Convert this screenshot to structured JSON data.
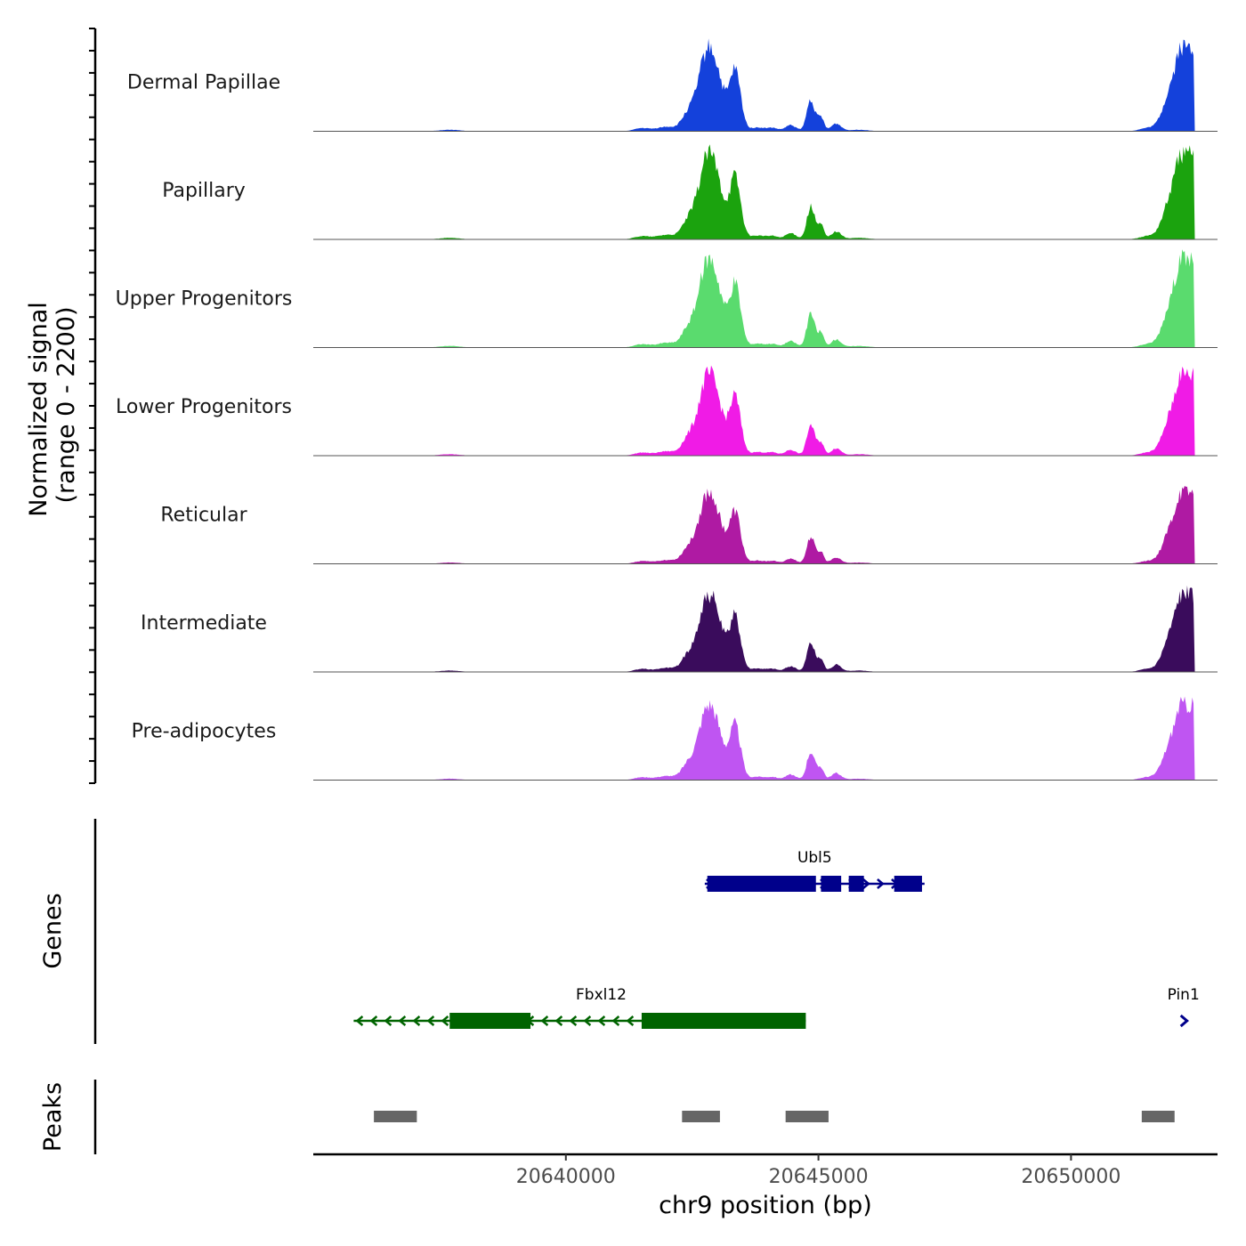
{
  "chart_data": {
    "type": "area",
    "title": "",
    "xlabel": "chr9 position (bp)",
    "ylabel": [
      "Normalized signal",
      "(range 0 - 2200)"
    ],
    "y_range": [
      0,
      2200
    ],
    "x_range": [
      20635000,
      20652900
    ],
    "x_ticks": [
      20640000,
      20645000,
      20650000
    ],
    "x_tick_labels": [
      "20640000",
      "20645000",
      "20650000"
    ],
    "genes_label": "Genes",
    "peaks_label": "Peaks",
    "peak_profile": [
      {
        "center": 20637700,
        "height": 0.02,
        "width": 200
      },
      {
        "center": 20641500,
        "height": 0.04,
        "width": 150
      },
      {
        "center": 20642000,
        "height": 0.06,
        "width": 200
      },
      {
        "center": 20642400,
        "height": 0.18,
        "width": 120
      },
      {
        "center": 20642750,
        "height": 0.8,
        "width": 170
      },
      {
        "center": 20642950,
        "height": 0.55,
        "width": 150
      },
      {
        "center": 20643350,
        "height": 0.8,
        "width": 110
      },
      {
        "center": 20643100,
        "height": 0.12,
        "width": 100
      },
      {
        "center": 20643800,
        "height": 0.05,
        "width": 150
      },
      {
        "center": 20644100,
        "height": 0.04,
        "width": 100
      },
      {
        "center": 20644450,
        "height": 0.08,
        "width": 110
      },
      {
        "center": 20644850,
        "height": 0.42,
        "width": 80
      },
      {
        "center": 20645050,
        "height": 0.18,
        "width": 60
      },
      {
        "center": 20645350,
        "height": 0.1,
        "width": 100
      },
      {
        "center": 20645800,
        "height": 0.02,
        "width": 200
      },
      {
        "center": 20651500,
        "height": 0.04,
        "width": 150
      },
      {
        "center": 20652000,
        "height": 0.55,
        "width": 170
      },
      {
        "center": 20652250,
        "height": 1.0,
        "width": 130
      },
      {
        "center": 20652400,
        "height": 0.7,
        "width": 90
      }
    ],
    "series": [
      {
        "name": "Dermal Papillae",
        "color": "#1441DB",
        "scale": 0.95
      },
      {
        "name": "Papillary",
        "color": "#1BA30E",
        "scale": 0.97
      },
      {
        "name": "Upper Progenitors",
        "color": "#5ADB6E",
        "scale": 1.0
      },
      {
        "name": "Lower Progenitors",
        "color": "#F01BE6",
        "scale": 0.92
      },
      {
        "name": "Reticular",
        "color": "#AF1AA3",
        "scale": 0.8
      },
      {
        "name": "Intermediate",
        "color": "#3A0C5C",
        "scale": 0.88
      },
      {
        "name": "Pre-adipocytes",
        "color": "#BF55F2",
        "scale": 0.85
      }
    ],
    "genes": [
      {
        "name": "Ubl5",
        "start": 20642750,
        "end": 20647100,
        "strand": "+",
        "color": "#00008B",
        "exons": [
          [
            20642800,
            20644950
          ],
          [
            20645050,
            20645450
          ],
          [
            20645600,
            20645900
          ],
          [
            20646500,
            20647050
          ]
        ],
        "row": 0
      },
      {
        "name": "Fbxl12",
        "start": 20635800,
        "end": 20644750,
        "strand": "-",
        "color": "#006400",
        "exons": [
          [
            20637700,
            20639300
          ],
          [
            20641500,
            20644750
          ]
        ],
        "row": 1
      },
      {
        "name": "Pin1",
        "start": 20652150,
        "end": 20652300,
        "strand": "+",
        "color": "#00008B",
        "exons": [],
        "row": 1
      }
    ],
    "peaks": [
      [
        20636200,
        20637050
      ],
      [
        20642300,
        20643050
      ],
      [
        20644350,
        20645200
      ],
      [
        20651400,
        20652050
      ]
    ],
    "peak_color": "#666666"
  }
}
